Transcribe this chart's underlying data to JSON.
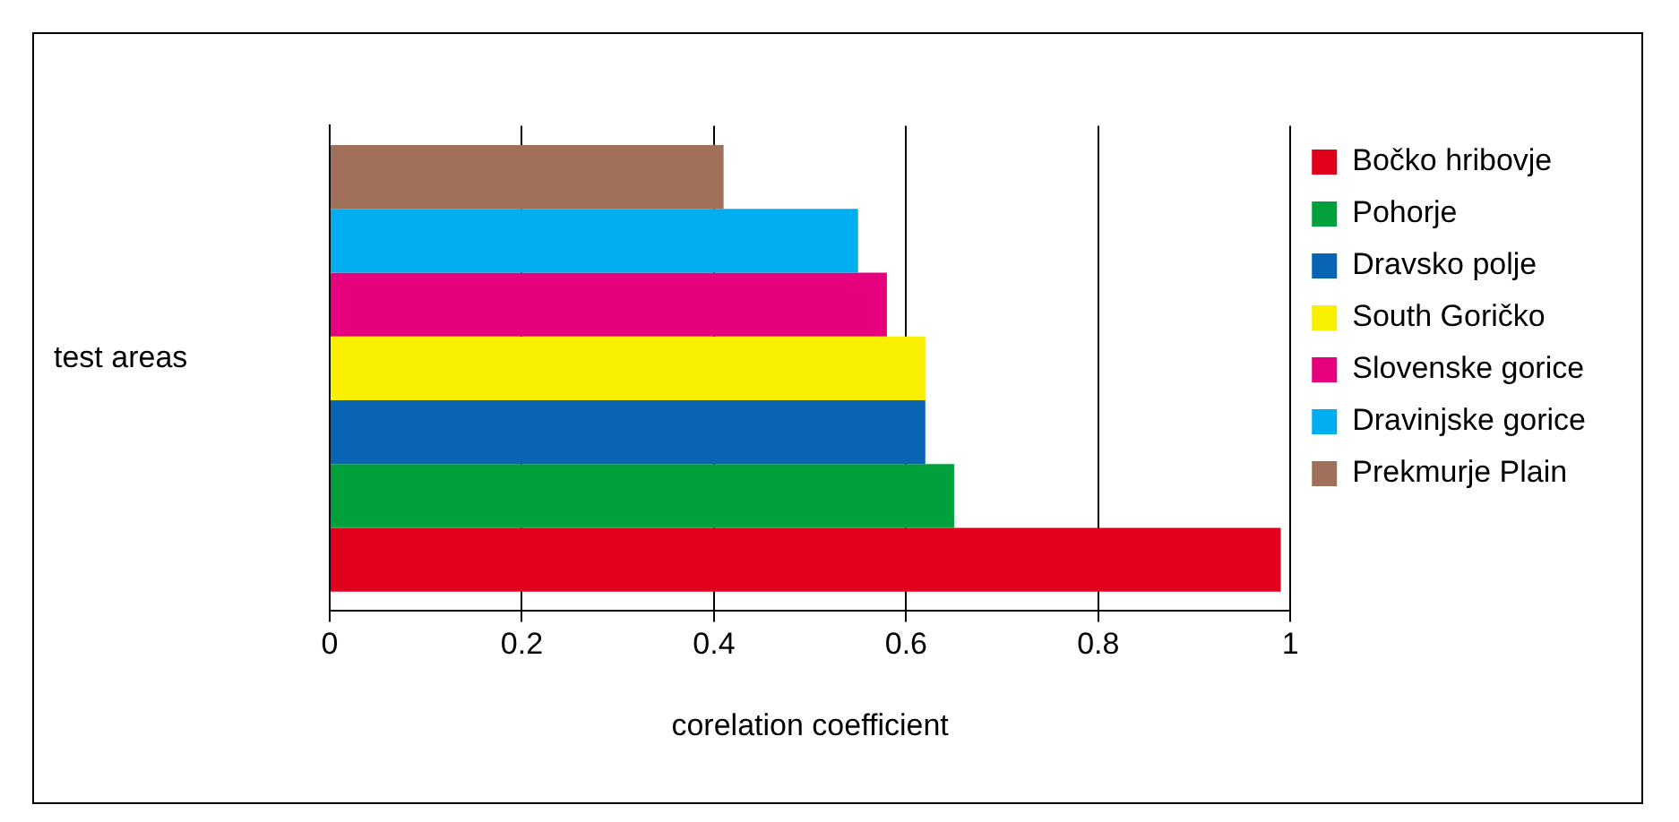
{
  "chart_data": {
    "type": "bar",
    "orientation": "horizontal",
    "xlabel": "corelation coefficient",
    "ylabel": "test areas",
    "categories": [
      null
    ],
    "series": [
      {
        "name": "Bočko hribovje",
        "color": "#e0001b",
        "values": [
          0.99
        ]
      },
      {
        "name": "Pohorje",
        "color": "#00a03c",
        "values": [
          0.65
        ]
      },
      {
        "name": "Dravsko polje",
        "color": "#0a64b4",
        "values": [
          0.62
        ]
      },
      {
        "name": "South Goričko",
        "color": "#f8f000",
        "values": [
          0.62
        ]
      },
      {
        "name": "Slovenske gorice",
        "color": "#e6007e",
        "values": [
          0.58
        ]
      },
      {
        "name": "Dravinjske gorice",
        "color": "#00aeef",
        "values": [
          0.55
        ]
      },
      {
        "name": "Prekmurje Plain",
        "color": "#a0705a",
        "values": [
          0.41
        ]
      }
    ],
    "xlim": [
      0,
      1
    ],
    "xticks": [
      0,
      0.2,
      0.4,
      0.6,
      0.8,
      1
    ],
    "grid": "x",
    "legend": "right"
  }
}
